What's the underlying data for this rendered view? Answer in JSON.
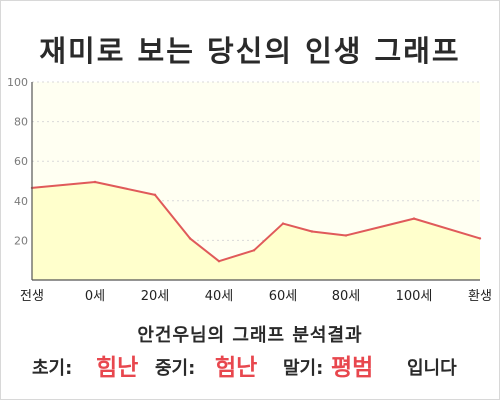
{
  "title": "재미로 보는 당신의 인생 그래프",
  "subtitle": "안건우님의 그래프 분석결과",
  "result": {
    "early_label": "초기:",
    "early_value": "힘난",
    "middle_label": "중기:",
    "middle_value": "험난",
    "late_label": "말기:",
    "late_value": "평범",
    "suffix": "입니다"
  },
  "colors": {
    "line": "#e05a5a",
    "fill": "#ffffcc",
    "plot_bg": "#fffff2",
    "accent_text": "#e8474e"
  },
  "chart_data": {
    "type": "area",
    "x_tick_labels": [
      "전생",
      "0세",
      "20세",
      "40세",
      "60세",
      "80세",
      "100세",
      "환생"
    ],
    "y_ticks": [
      20,
      40,
      60,
      80,
      100
    ],
    "ylim": [
      0,
      100
    ],
    "grid": true,
    "points": [
      {
        "x": "전생",
        "y": 46.5
      },
      {
        "x": "0세",
        "y": 49.5
      },
      {
        "x": "20세",
        "y": 43
      },
      {
        "x": "30세",
        "y": 21
      },
      {
        "x": "40세",
        "y": 9.5
      },
      {
        "x": "50세",
        "y": 15
      },
      {
        "x": "60세",
        "y": 28.5
      },
      {
        "x": "70세",
        "y": 24.5
      },
      {
        "x": "80세",
        "y": 22.5
      },
      {
        "x": "100세",
        "y": 31
      },
      {
        "x": "환생",
        "y": 21
      }
    ]
  }
}
